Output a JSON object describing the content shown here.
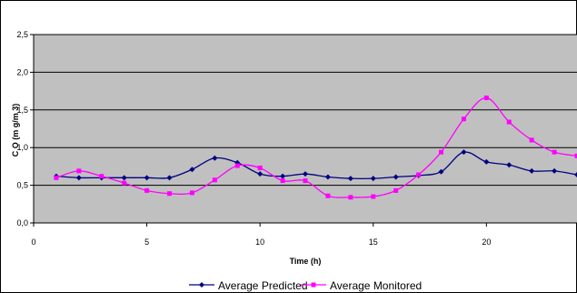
{
  "chart_data": {
    "type": "line",
    "title": "",
    "xlabel": "Time (h)",
    "ylabel": "C O  (m g/m 3)",
    "xlim": [
      0,
      24
    ],
    "ylim": [
      0,
      2.5
    ],
    "xticks": [
      "0",
      "5",
      "10",
      "15",
      "20"
    ],
    "yticks": [
      "0,0",
      "0,5",
      "1,0",
      "1,5",
      "2,0",
      "2,5"
    ],
    "grid": true,
    "plot_background": "#c0c0c0",
    "legend": "bottom",
    "x": [
      1,
      2,
      3,
      4,
      5,
      6,
      7,
      8,
      9,
      10,
      11,
      12,
      13,
      14,
      15,
      16,
      17,
      18,
      19,
      20,
      21,
      22,
      23,
      24
    ],
    "series": [
      {
        "name": "Average Predicted",
        "color": "#000080",
        "marker": "diamond",
        "values": [
          0.62,
          0.6,
          0.6,
          0.6,
          0.6,
          0.6,
          0.71,
          0.86,
          0.8,
          0.65,
          0.62,
          0.65,
          0.61,
          0.59,
          0.59,
          0.61,
          0.63,
          0.68,
          0.94,
          0.81,
          0.77,
          0.69,
          0.69,
          0.64
        ]
      },
      {
        "name": "Average Monitored",
        "color": "#ff00ff",
        "marker": "square",
        "values": [
          0.6,
          0.69,
          0.62,
          0.53,
          0.43,
          0.39,
          0.4,
          0.57,
          0.76,
          0.73,
          0.56,
          0.56,
          0.36,
          0.34,
          0.35,
          0.43,
          0.64,
          0.94,
          1.38,
          1.66,
          1.34,
          1.1,
          0.94,
          0.89
        ]
      }
    ]
  }
}
